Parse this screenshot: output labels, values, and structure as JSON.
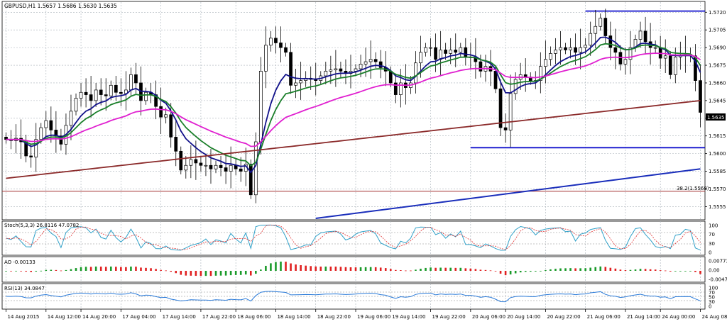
{
  "chart_data": {
    "type": "candlestick",
    "title": "GBPUSD,H1  1.5657 1.5686 1.5630 1.5635",
    "symbol": "GBPUSD,H1",
    "ylim": [
      1.5545,
      1.5728
    ],
    "grid": true,
    "y_ticks": [
      1.572,
      1.5705,
      1.569,
      1.5675,
      1.566,
      1.5645,
      1.563,
      1.5615,
      1.56,
      1.5585,
      1.557,
      1.5555
    ],
    "y_tick_labels": [
      "1.5720",
      "1.5705",
      "1.5690",
      "1.5675",
      "1.5660",
      "1.5645",
      "1.5630",
      "1.5615",
      "1.5600",
      "1.5585",
      "1.5570",
      "1.5555"
    ],
    "current_price": 1.5635,
    "current_price_label": "1.5635",
    "x_tick_labels": [
      "14 Aug 2015",
      "14 Aug 12:00",
      "14 Aug 20:00",
      "17 Aug 04:00",
      "17 Aug 14:00",
      "17 Aug 22:00",
      "18 Aug 06:00",
      "18 Aug 14:00",
      "18 Aug 22:00",
      "19 Aug 06:00",
      "19 Aug 14:00",
      "19 Aug 22:00",
      "20 Aug 06:00",
      "20 Aug 14:00",
      "20 Aug 22:00",
      "21 Aug 06:00",
      "21 Aug 14:00",
      "24 Aug 00:00",
      "24 Aug 08:00"
    ],
    "bar_count": 140,
    "closes": [
      1.5612,
      1.5611,
      1.5613,
      1.561,
      1.5598,
      1.5597,
      1.5612,
      1.5622,
      1.5628,
      1.562,
      1.5615,
      1.5608,
      1.5624,
      1.5636,
      1.5647,
      1.5652,
      1.565,
      1.5645,
      1.5654,
      1.565,
      1.5649,
      1.5658,
      1.5652,
      1.5651,
      1.5654,
      1.5667,
      1.566,
      1.5645,
      1.5652,
      1.565,
      1.564,
      1.5631,
      1.5633,
      1.5614,
      1.5602,
      1.5586,
      1.559,
      1.5595,
      1.5592,
      1.559,
      1.559,
      1.5587,
      1.559,
      1.5588,
      1.5585,
      1.559,
      1.5587,
      1.5585,
      1.5591,
      1.5565,
      1.561,
      1.567,
      1.5692,
      1.5698,
      1.5694,
      1.569,
      1.5686,
      1.5658,
      1.566,
      1.5662,
      1.5664,
      1.5663,
      1.5662,
      1.5666,
      1.567,
      1.5671,
      1.5672,
      1.567,
      1.5668,
      1.567,
      1.5672,
      1.5676,
      1.5678,
      1.568,
      1.5678,
      1.5673,
      1.567,
      1.566,
      1.565,
      1.566,
      1.5656,
      1.566,
      1.5677,
      1.5686,
      1.569,
      1.569,
      1.568,
      1.5688,
      1.5685,
      1.5688,
      1.5686,
      1.569,
      1.5682,
      1.5682,
      1.5678,
      1.567,
      1.5674,
      1.567,
      1.5655,
      1.5622,
      1.562,
      1.5651,
      1.5663,
      1.5667,
      1.5665,
      1.5662,
      1.5662,
      1.5674,
      1.568,
      1.5685,
      1.5688,
      1.569,
      1.5688,
      1.569,
      1.5686,
      1.569,
      1.5692,
      1.5702,
      1.5708,
      1.5715,
      1.57,
      1.569,
      1.5686,
      1.5676,
      1.568,
      1.569,
      1.5697,
      1.5704,
      1.5695,
      1.569,
      1.569,
      1.5681,
      1.5683,
      1.5667,
      1.5682,
      1.5683,
      1.5684,
      1.5683,
      1.5662,
      1.5635
    ],
    "lines": [
      {
        "label": "38.2(1.5568)",
        "price": 1.5568,
        "color": "#a33030"
      },
      {
        "price": 1.5721,
        "from_x": "21 Aug 06:00",
        "color": "#1010cc"
      },
      {
        "price": 1.5605,
        "from_x": "20 Aug 06:00",
        "color": "#1010cc"
      },
      {
        "trend": true,
        "from": [
          "18 Aug 22:00",
          1.5545
        ],
        "to": [
          "24 Aug 08:00",
          1.5587
        ],
        "color": "#1a2ebb"
      }
    ],
    "moving_averages": [
      {
        "color": "#11118a",
        "period": 8
      },
      {
        "color": "#1a7f2a",
        "period": 13
      },
      {
        "color": "#e020d0",
        "period": 34
      },
      {
        "color": "#8b2a2a",
        "period": 200
      }
    ],
    "subplots": [
      {
        "name": "Stoch(5,3,3)",
        "label": "Stoch(5,3,3) 26.8116 47.0782",
        "ylim": [
          0,
          100
        ],
        "ticks": [
          "100",
          "70",
          "30",
          "0"
        ],
        "levels": [
          70,
          30
        ]
      },
      {
        "name": "AO",
        "label": "AO -0.00133",
        "ticks": [
          "0.00773",
          "0.00",
          "-0.00477"
        ]
      },
      {
        "name": "RSI(13)",
        "label": "RSI(13) 34.0847",
        "ylim": [
          0,
          100
        ],
        "ticks": [
          "100",
          "70",
          "50",
          "30",
          "0"
        ],
        "levels": [
          70,
          50,
          30
        ]
      }
    ]
  }
}
